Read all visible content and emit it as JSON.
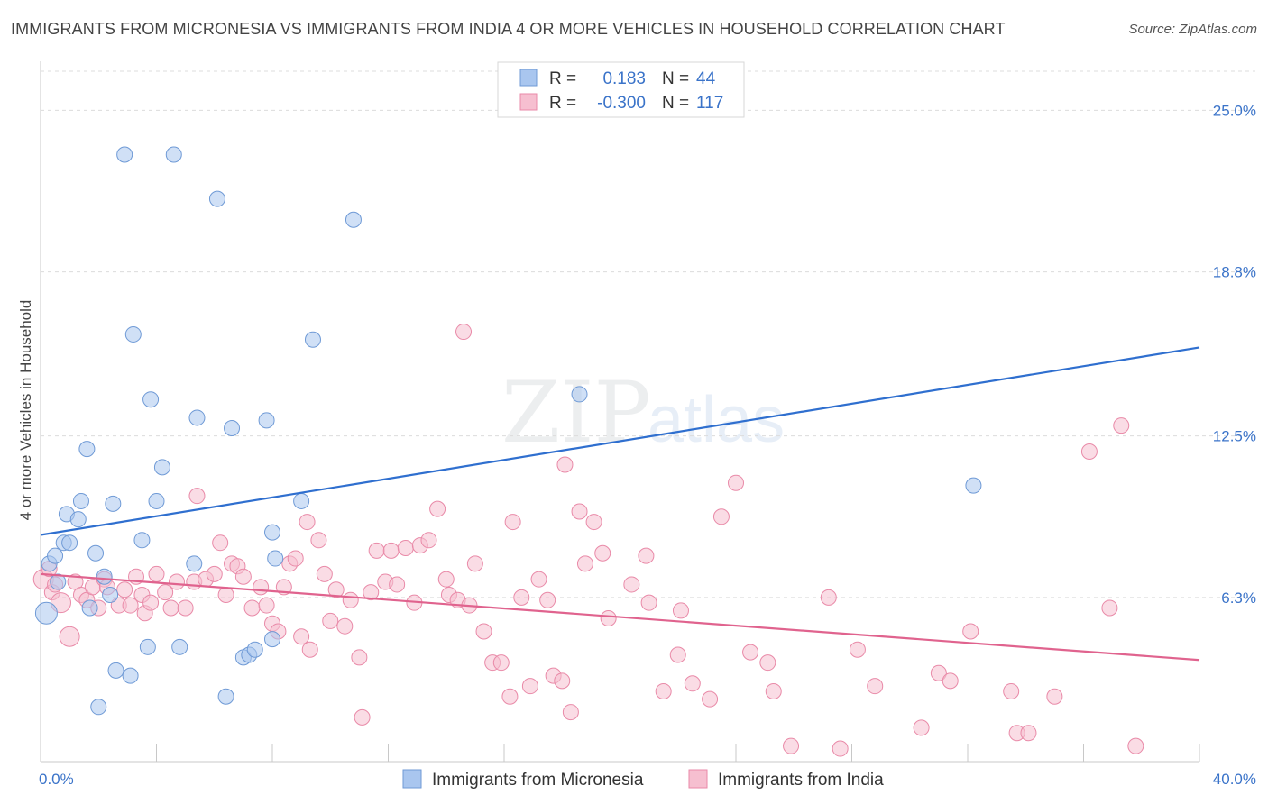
{
  "header": {
    "title": "IMMIGRANTS FROM MICRONESIA VS IMMIGRANTS FROM INDIA 4 OR MORE VEHICLES IN HOUSEHOLD CORRELATION CHART",
    "source": "Source: ZipAtlas.com"
  },
  "watermark": {
    "zip": "ZIP",
    "atlas": "atlas"
  },
  "colors": {
    "micronesia_fill": "#a9c6ef",
    "micronesia_stroke": "#6f9ad6",
    "micronesia_line": "#2f6fcf",
    "india_fill": "#f6bfd0",
    "india_stroke": "#e98aa8",
    "india_line": "#e0638e",
    "axis_text": "#3a73c9"
  },
  "legend_top": {
    "rows": [
      {
        "r_label": "R =",
        "r_value": "0.183",
        "n_label": "N =",
        "n_value": "44"
      },
      {
        "r_label": "R =",
        "r_value": "-0.300",
        "n_label": "N =",
        "n_value": "117"
      }
    ]
  },
  "chart_data": {
    "type": "scatter",
    "title": "IMMIGRANTS FROM MICRONESIA VS IMMIGRANTS FROM INDIA 4 OR MORE VEHICLES IN HOUSEHOLD CORRELATION CHART",
    "xlabel": "",
    "ylabel": "4 or more Vehicles in Household",
    "xlim": [
      0,
      40
    ],
    "ylim": [
      0,
      26.5
    ],
    "x_tick_labels": [
      "0.0%",
      "40.0%"
    ],
    "y_ticks": [
      6.3,
      12.5,
      18.8,
      25.0
    ],
    "y_tick_labels": [
      "6.3%",
      "12.5%",
      "18.8%",
      "25.0%"
    ],
    "grid": true,
    "legend_position": "bottom",
    "series": [
      {
        "name": "Immigrants from Micronesia",
        "r": 0.183,
        "n": 44,
        "trend": {
          "x": [
            0,
            40
          ],
          "y": [
            8.7,
            15.9
          ]
        },
        "points": [
          [
            0.2,
            5.7
          ],
          [
            0.3,
            7.6
          ],
          [
            0.5,
            7.9
          ],
          [
            0.6,
            6.9
          ],
          [
            0.8,
            8.4
          ],
          [
            0.9,
            9.5
          ],
          [
            1.0,
            8.4
          ],
          [
            1.3,
            9.3
          ],
          [
            1.4,
            10.0
          ],
          [
            1.6,
            12.0
          ],
          [
            1.7,
            5.9
          ],
          [
            1.9,
            8.0
          ],
          [
            2.0,
            2.1
          ],
          [
            2.2,
            7.1
          ],
          [
            2.4,
            6.4
          ],
          [
            2.5,
            9.9
          ],
          [
            2.6,
            3.5
          ],
          [
            2.9,
            23.3
          ],
          [
            3.1,
            3.3
          ],
          [
            3.2,
            16.4
          ],
          [
            3.5,
            8.5
          ],
          [
            3.7,
            4.4
          ],
          [
            3.8,
            13.9
          ],
          [
            4.0,
            10.0
          ],
          [
            4.2,
            11.3
          ],
          [
            4.6,
            23.3
          ],
          [
            4.8,
            4.4
          ],
          [
            5.3,
            7.6
          ],
          [
            5.4,
            13.2
          ],
          [
            6.1,
            21.6
          ],
          [
            6.4,
            2.5
          ],
          [
            6.6,
            12.8
          ],
          [
            7.0,
            4.0
          ],
          [
            7.2,
            4.1
          ],
          [
            7.4,
            4.3
          ],
          [
            7.8,
            13.1
          ],
          [
            8.0,
            8.8
          ],
          [
            8.0,
            4.7
          ],
          [
            8.1,
            7.8
          ],
          [
            9.0,
            10.0
          ],
          [
            9.4,
            16.2
          ],
          [
            10.8,
            20.8
          ],
          [
            18.6,
            14.1
          ],
          [
            32.2,
            10.6
          ]
        ]
      },
      {
        "name": "Immigrants from India",
        "r": -0.3,
        "n": 117,
        "trend": {
          "x": [
            0,
            40
          ],
          "y": [
            7.2,
            3.9
          ]
        },
        "points": [
          [
            0.1,
            7.0
          ],
          [
            0.3,
            7.4
          ],
          [
            0.4,
            6.5
          ],
          [
            0.5,
            6.8
          ],
          [
            0.7,
            6.1
          ],
          [
            1.0,
            4.8
          ],
          [
            1.2,
            6.9
          ],
          [
            1.4,
            6.4
          ],
          [
            1.6,
            6.2
          ],
          [
            1.8,
            6.7
          ],
          [
            2.0,
            5.9
          ],
          [
            2.2,
            7.0
          ],
          [
            2.3,
            6.7
          ],
          [
            2.7,
            6.0
          ],
          [
            2.9,
            6.6
          ],
          [
            3.1,
            6.0
          ],
          [
            3.3,
            7.1
          ],
          [
            3.5,
            6.4
          ],
          [
            3.6,
            5.7
          ],
          [
            3.8,
            6.1
          ],
          [
            4.0,
            7.2
          ],
          [
            4.3,
            6.5
          ],
          [
            4.5,
            5.9
          ],
          [
            4.7,
            6.9
          ],
          [
            5.0,
            5.9
          ],
          [
            5.3,
            6.9
          ],
          [
            5.4,
            10.2
          ],
          [
            5.7,
            7.0
          ],
          [
            6.0,
            7.2
          ],
          [
            6.2,
            8.4
          ],
          [
            6.4,
            6.4
          ],
          [
            6.6,
            7.6
          ],
          [
            6.8,
            7.5
          ],
          [
            7.0,
            7.1
          ],
          [
            7.3,
            5.9
          ],
          [
            7.6,
            6.7
          ],
          [
            7.8,
            6.0
          ],
          [
            8.0,
            5.3
          ],
          [
            8.2,
            5.0
          ],
          [
            8.4,
            6.7
          ],
          [
            8.6,
            7.6
          ],
          [
            8.8,
            7.8
          ],
          [
            9.0,
            4.8
          ],
          [
            9.2,
            9.2
          ],
          [
            9.3,
            4.3
          ],
          [
            9.6,
            8.5
          ],
          [
            9.8,
            7.2
          ],
          [
            10.0,
            5.4
          ],
          [
            10.2,
            6.6
          ],
          [
            10.5,
            5.2
          ],
          [
            10.7,
            6.2
          ],
          [
            11.0,
            4.0
          ],
          [
            11.1,
            1.7
          ],
          [
            11.4,
            6.5
          ],
          [
            11.6,
            8.1
          ],
          [
            11.9,
            6.9
          ],
          [
            12.1,
            8.1
          ],
          [
            12.3,
            6.8
          ],
          [
            12.6,
            8.2
          ],
          [
            12.9,
            6.1
          ],
          [
            13.1,
            8.3
          ],
          [
            13.4,
            8.5
          ],
          [
            13.7,
            9.7
          ],
          [
            14.0,
            7.0
          ],
          [
            14.1,
            6.4
          ],
          [
            14.4,
            6.2
          ],
          [
            14.6,
            16.5
          ],
          [
            14.8,
            6.0
          ],
          [
            15.0,
            7.6
          ],
          [
            15.3,
            5.0
          ],
          [
            15.6,
            3.8
          ],
          [
            15.9,
            3.8
          ],
          [
            16.2,
            2.5
          ],
          [
            16.3,
            9.2
          ],
          [
            16.6,
            6.3
          ],
          [
            16.9,
            2.9
          ],
          [
            17.2,
            7.0
          ],
          [
            17.5,
            6.2
          ],
          [
            17.7,
            3.3
          ],
          [
            18.0,
            3.1
          ],
          [
            18.1,
            11.4
          ],
          [
            18.3,
            1.9
          ],
          [
            18.6,
            9.6
          ],
          [
            18.8,
            7.6
          ],
          [
            19.1,
            9.2
          ],
          [
            19.4,
            8.0
          ],
          [
            19.6,
            5.5
          ],
          [
            20.4,
            6.8
          ],
          [
            20.9,
            7.9
          ],
          [
            21.0,
            6.1
          ],
          [
            21.5,
            2.7
          ],
          [
            22.0,
            4.1
          ],
          [
            22.1,
            5.8
          ],
          [
            22.5,
            3.0
          ],
          [
            23.1,
            2.4
          ],
          [
            23.5,
            9.4
          ],
          [
            24.0,
            10.7
          ],
          [
            24.5,
            4.2
          ],
          [
            25.1,
            3.8
          ],
          [
            25.3,
            2.7
          ],
          [
            25.9,
            0.6
          ],
          [
            27.2,
            6.3
          ],
          [
            27.6,
            0.5
          ],
          [
            28.2,
            4.3
          ],
          [
            28.8,
            2.9
          ],
          [
            30.4,
            1.3
          ],
          [
            31.0,
            3.4
          ],
          [
            31.4,
            3.1
          ],
          [
            32.1,
            5.0
          ],
          [
            33.5,
            2.7
          ],
          [
            33.7,
            1.1
          ],
          [
            34.1,
            1.1
          ],
          [
            35.0,
            2.5
          ],
          [
            36.2,
            11.9
          ],
          [
            36.9,
            5.9
          ],
          [
            37.3,
            12.9
          ],
          [
            37.8,
            0.6
          ]
        ]
      }
    ]
  }
}
